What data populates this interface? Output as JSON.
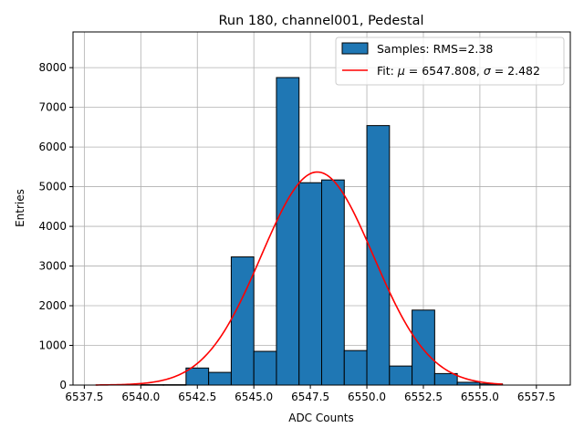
{
  "chart_data": {
    "type": "bar",
    "title": "Run 180, channel001, Pedestal",
    "xlabel": "ADC Counts",
    "ylabel": "Entries",
    "xlim": [
      6537.0,
      6559.0
    ],
    "ylim": [
      0,
      8900
    ],
    "grid": true,
    "legend_position": "top-right",
    "x_ticks": [
      6537.5,
      6540.0,
      6542.5,
      6545.0,
      6547.5,
      6550.0,
      6552.5,
      6555.0,
      6557.5
    ],
    "x_tick_labels": [
      "6537.5",
      "6540.0",
      "6542.5",
      "6545.0",
      "6547.5",
      "6550.0",
      "6552.5",
      "6555.0",
      "6557.5"
    ],
    "y_ticks": [
      0,
      1000,
      2000,
      3000,
      4000,
      5000,
      6000,
      7000,
      8000
    ],
    "y_tick_labels": [
      "0",
      "1000",
      "2000",
      "3000",
      "4000",
      "5000",
      "6000",
      "7000",
      "8000"
    ],
    "histogram": {
      "name": "Samples: RMS=2.38",
      "color": "#1f77b4",
      "edge_color": "#000000",
      "bins": [
        {
          "x0": 6538.0,
          "x1": 6539.0,
          "count": 0
        },
        {
          "x0": 6539.0,
          "x1": 6540.0,
          "count": 0
        },
        {
          "x0": 6540.0,
          "x1": 6541.0,
          "count": 10
        },
        {
          "x0": 6541.0,
          "x1": 6542.0,
          "count": 10
        },
        {
          "x0": 6542.0,
          "x1": 6543.0,
          "count": 430
        },
        {
          "x0": 6543.0,
          "x1": 6544.0,
          "count": 320
        },
        {
          "x0": 6544.0,
          "x1": 6545.0,
          "count": 3230
        },
        {
          "x0": 6545.0,
          "x1": 6546.0,
          "count": 850
        },
        {
          "x0": 6546.0,
          "x1": 6547.0,
          "count": 7750
        },
        {
          "x0": 6547.0,
          "x1": 6548.0,
          "count": 5100
        },
        {
          "x0": 6548.0,
          "x1": 6549.0,
          "count": 5170
        },
        {
          "x0": 6549.0,
          "x1": 6550.0,
          "count": 870
        },
        {
          "x0": 6550.0,
          "x1": 6551.0,
          "count": 6540
        },
        {
          "x0": 6551.0,
          "x1": 6552.0,
          "count": 480
        },
        {
          "x0": 6552.0,
          "x1": 6553.0,
          "count": 1890
        },
        {
          "x0": 6553.0,
          "x1": 6554.0,
          "count": 290
        },
        {
          "x0": 6554.0,
          "x1": 6555.0,
          "count": 70
        },
        {
          "x0": 6555.0,
          "x1": 6556.0,
          "count": 30
        }
      ]
    },
    "fit": {
      "name": "Fit: μ = 6547.808, σ = 2.482",
      "label_prefix": "Fit: ",
      "mu_symbol": "μ",
      "mu_text": " = 6547.808, ",
      "sigma_symbol": "σ",
      "sigma_text": " = 2.482",
      "color": "#ff0000",
      "mu": 6547.808,
      "sigma": 2.482,
      "amplitude": 5370,
      "x_range": [
        6538.0,
        6556.0
      ]
    }
  }
}
